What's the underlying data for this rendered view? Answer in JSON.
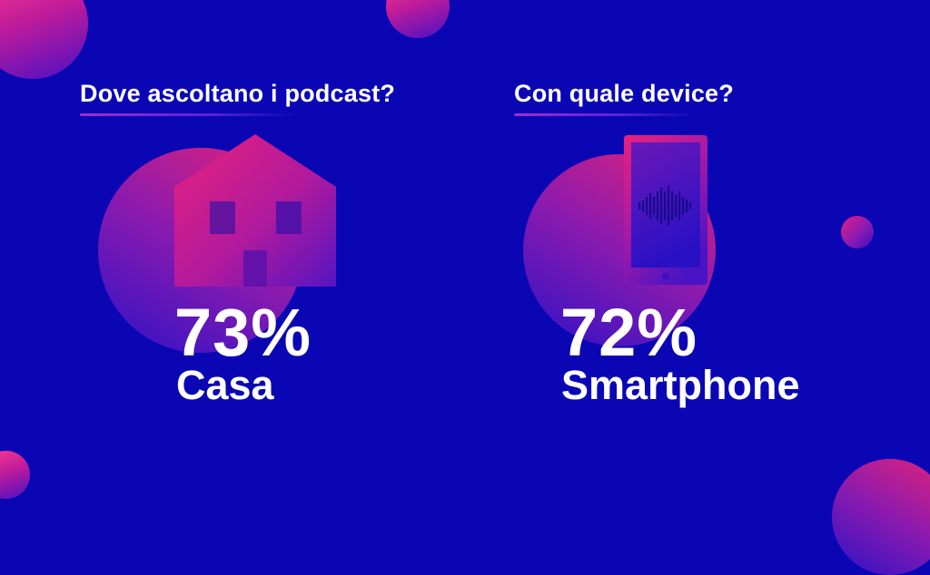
{
  "left": {
    "heading": "Dove ascoltano i podcast?",
    "value": "73%",
    "label": "Casa",
    "icon": "house-icon"
  },
  "right": {
    "heading": "Con quale device?",
    "value": "72%",
    "label": "Smartphone",
    "icon": "smartphone-icon"
  },
  "colors": {
    "background": "#0a06b4",
    "accent_pink": "#e3207f",
    "accent_purple": "#8a1ab4",
    "text": "#ffffff"
  }
}
